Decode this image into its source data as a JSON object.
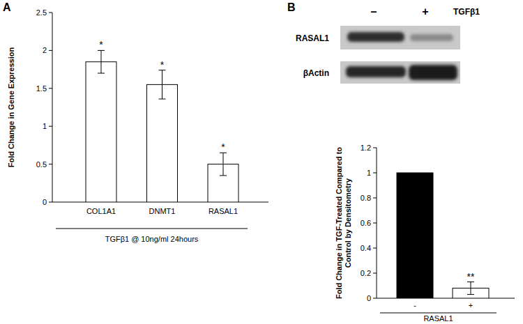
{
  "chart_data": [
    {
      "type": "bar",
      "panel": "A",
      "categories": [
        "COL1A1",
        "DNMT1",
        "RASAL1"
      ],
      "values": [
        1.85,
        1.55,
        0.5
      ],
      "errors": [
        0.15,
        0.19,
        0.15
      ],
      "significance": [
        "*",
        "*",
        "*"
      ],
      "color": "#ffffff",
      "ylabel": "Fold Change in Gene Expression",
      "xlabel": "TGFβ1 @ 10ng/ml 24hours",
      "ylim": [
        0,
        2.5
      ],
      "yticks": [
        0,
        0.5,
        1,
        1.5,
        2,
        2.5
      ]
    },
    {
      "type": "bar",
      "panel": "B",
      "blot": {
        "lanes": [
          "–",
          "+"
        ],
        "lane_title": "TGFβ1",
        "rows": [
          "RASAL1",
          "βActin"
        ]
      },
      "categories": [
        "-",
        "+"
      ],
      "values": [
        1,
        0.08
      ],
      "errors": [
        null,
        0.05
      ],
      "significance": [
        null,
        "**"
      ],
      "colors": [
        "#000000",
        "#ffffff"
      ],
      "ylabel": "Fold Change in TGF-Treated Compared to Control by Densitometry",
      "xlabel": "RASAL1",
      "ylim": [
        0,
        1.2
      ],
      "yticks": [
        0,
        0.2,
        0.4,
        0.6,
        0.8,
        1,
        1.2
      ]
    }
  ]
}
